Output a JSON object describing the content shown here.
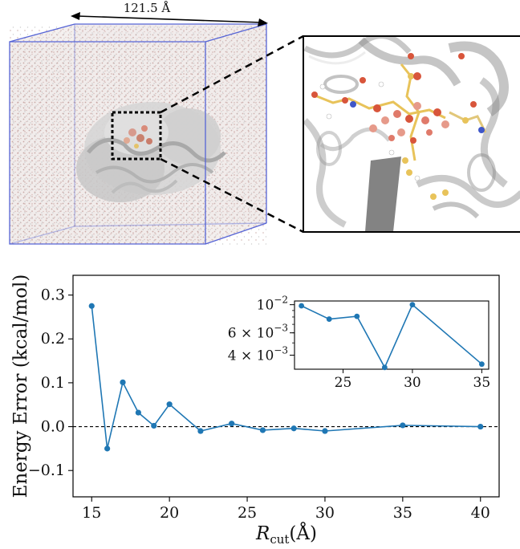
{
  "figure": {
    "box_label": "121.5 Å"
  },
  "chart_data": {
    "type": "line",
    "main": {
      "x": [
        15,
        16,
        17,
        18,
        19,
        20,
        22,
        24,
        26,
        28,
        30,
        35,
        40
      ],
      "y": [
        0.275,
        -0.05,
        0.101,
        0.032,
        0.002,
        0.051,
        -0.01,
        0.007,
        -0.008,
        -0.004,
        -0.01,
        0.003,
        0.0
      ],
      "ylabel": "Energy Error (kcal/mol)",
      "xlabel_main": "R",
      "xlabel_sub": "cut",
      "xlabel_unit": "(Å)",
      "xlim": [
        13.8,
        41.2
      ],
      "ylim": [
        -0.16,
        0.345
      ],
      "xticks": [
        15,
        20,
        25,
        30,
        35,
        40
      ],
      "xtick_labels": [
        "15",
        "20",
        "25",
        "30",
        "35",
        "40"
      ],
      "yticks": [
        -0.1,
        0.0,
        0.1,
        0.2,
        0.3
      ],
      "ytick_labels": [
        "−0.1",
        "0.0",
        "0.1",
        "0.2",
        "0.3"
      ],
      "reference_line": 0.0,
      "color": "#1f77b4"
    },
    "inset": {
      "type": "line",
      "yscale": "log",
      "x": [
        22,
        24,
        26,
        28,
        30,
        35
      ],
      "y": [
        0.0098,
        0.0077,
        0.0081,
        0.0032,
        0.01,
        0.0034
      ],
      "xlim": [
        21.5,
        35.5
      ],
      "ylim": [
        0.0031,
        0.0107
      ],
      "xticks": [
        25,
        30,
        35
      ],
      "xtick_labels": [
        "25",
        "30",
        "35"
      ],
      "yticks": [
        0.01,
        0.006,
        0.004
      ],
      "ytick_labels": [
        {
          "mantissa": "",
          "exp": "−2",
          "prefix": "10"
        },
        {
          "mantissa": "6 × ",
          "exp": "−3",
          "prefix": "10"
        },
        {
          "mantissa": "4 × ",
          "exp": "−3",
          "prefix": "10"
        }
      ],
      "color": "#1f77b4"
    }
  }
}
